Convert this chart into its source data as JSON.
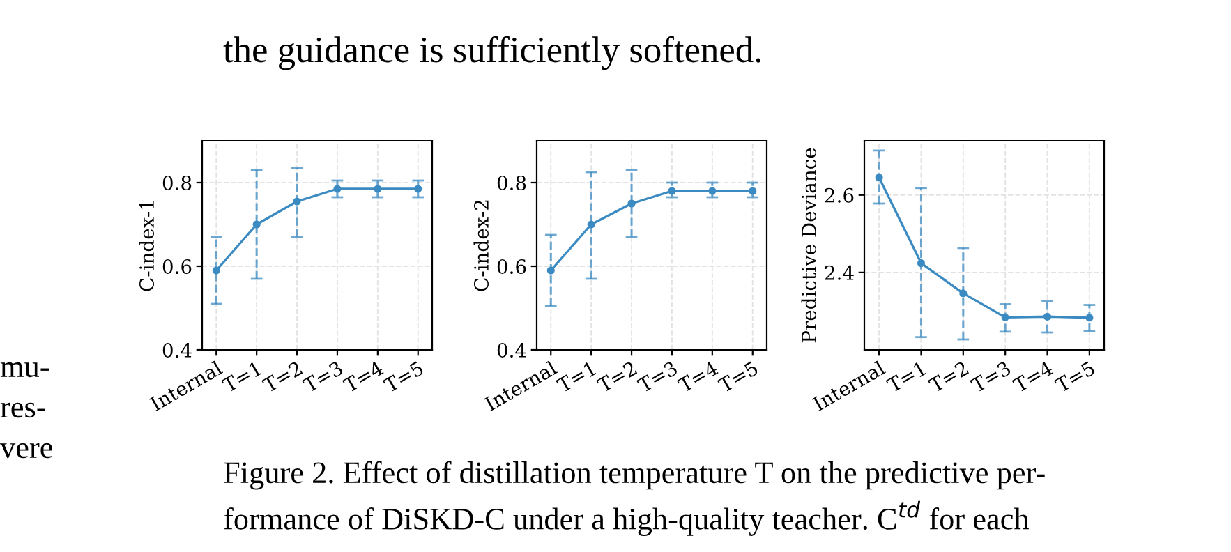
{
  "chart_data": [
    {
      "type": "line",
      "ylabel": "C-index-1",
      "categories": [
        "Internal",
        "T=1",
        "T=2",
        "T=3",
        "T=4",
        "T=5"
      ],
      "ylim": [
        0.4,
        0.9
      ],
      "yticks": [
        0.4,
        0.6,
        0.8
      ],
      "grid": true,
      "marker": "circle",
      "line_style": "solid",
      "series": [
        {
          "color": "#3b8bc2",
          "values": [
            0.59,
            0.7,
            0.755,
            0.785,
            0.785,
            0.785
          ],
          "errors": [
            [
              0.51,
              0.67
            ],
            [
              0.57,
              0.83
            ],
            [
              0.67,
              0.835
            ],
            [
              0.765,
              0.805
            ],
            [
              0.765,
              0.805
            ],
            [
              0.765,
              0.805
            ]
          ]
        }
      ],
      "annotations": [
        "the guidance is sufficiently softened.",
        "Figure 2. Effect of distillation temperature T on the predictive per-",
        "formance of DiSKD-C under a high-quality teacher. C$^{td}$ for each",
        "mu-",
        "res-",
        "vere"
      ]
    },
    {
      "type": "line",
      "ylabel": "C-index-2",
      "categories": [
        "Internal",
        "T=1",
        "T=2",
        "T=3",
        "T=4",
        "T=5"
      ],
      "ylim": [
        0.4,
        0.9
      ],
      "yticks": [
        0.4,
        0.6,
        0.8
      ],
      "grid": true,
      "marker": "circle",
      "line_style": "solid",
      "series": [
        {
          "color": "#3b8bc2",
          "values": [
            0.59,
            0.7,
            0.75,
            0.78,
            0.78,
            0.78
          ],
          "errors": [
            [
              0.505,
              0.675
            ],
            [
              0.57,
              0.825
            ],
            [
              0.67,
              0.83
            ],
            [
              0.765,
              0.8
            ],
            [
              0.765,
              0.8
            ],
            [
              0.765,
              0.8
            ]
          ]
        }
      ]
    },
    {
      "type": "line",
      "ylabel": "Predictive Deviance",
      "categories": [
        "Internal",
        "T=1",
        "T=2",
        "T=3",
        "T=4",
        "T=5"
      ],
      "ylim": [
        2.2,
        2.74
      ],
      "yticks": [
        2.4,
        2.6
      ],
      "grid": true,
      "marker": "circle",
      "line_style": "solid",
      "series": [
        {
          "color": "#3b8bc2",
          "values": [
            2.645,
            2.424,
            2.346,
            2.284,
            2.286,
            2.283
          ],
          "errors": [
            [
              2.578,
              2.715
            ],
            [
              2.233,
              2.618
            ],
            [
              2.227,
              2.463
            ],
            [
              2.247,
              2.318
            ],
            [
              2.245,
              2.326
            ],
            [
              2.249,
              2.316
            ]
          ]
        }
      ]
    }
  ]
}
